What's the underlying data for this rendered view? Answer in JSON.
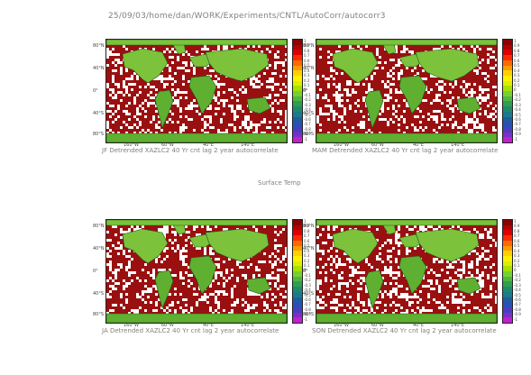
{
  "header": "25/09/03/home/dan/WORK/Experiments/CNTL/AutoCorr/autocorr3",
  "center_label": "Surface Temp",
  "colorbar": {
    "labels": [
      "1",
      "0.9",
      "0.8",
      "0.7",
      "0.6",
      "0.5",
      "0.4",
      "0.3",
      "0.2",
      "0.1",
      "0",
      "-0.1",
      "-0.2",
      "-0.3",
      "-0.4",
      "-0.5",
      "-0.6",
      "-0.7",
      "-0.8",
      "-0.9",
      "-1"
    ],
    "colors": [
      "#8b0000",
      "#b40000",
      "#dd0000",
      "#ff2a00",
      "#ff6a00",
      "#ff9a00",
      "#ffd000",
      "#fff000",
      "#d8f000",
      "#a8e000",
      "#78d030",
      "#4cb840",
      "#2e9e50",
      "#1f8a6a",
      "#1c7a8a",
      "#1a5f9e",
      "#2a4fb5",
      "#4a3ec0",
      "#7a30c8",
      "#c020d0"
    ]
  },
  "axes": {
    "lat": [
      "80°N",
      "40°N",
      "0°",
      "40°S",
      "80°S"
    ],
    "lon": [
      "160°W",
      "60°W",
      "40°E",
      "140°E"
    ]
  },
  "panels": [
    {
      "caption": "JF Detrended XAZLC2 40 Yr cnt lag 2 year autocorrelate"
    },
    {
      "caption": "MAM Detrended XAZLC2 40 Yr cnt lag 2 year autocorrelate"
    },
    {
      "caption": "JA Detrended XAZLC2 40 Yr cnt lag 2 year autocorrelate"
    },
    {
      "caption": "SON Detrended XAZLC2 40 Yr cnt lag 2 year autocorrelate"
    }
  ]
}
